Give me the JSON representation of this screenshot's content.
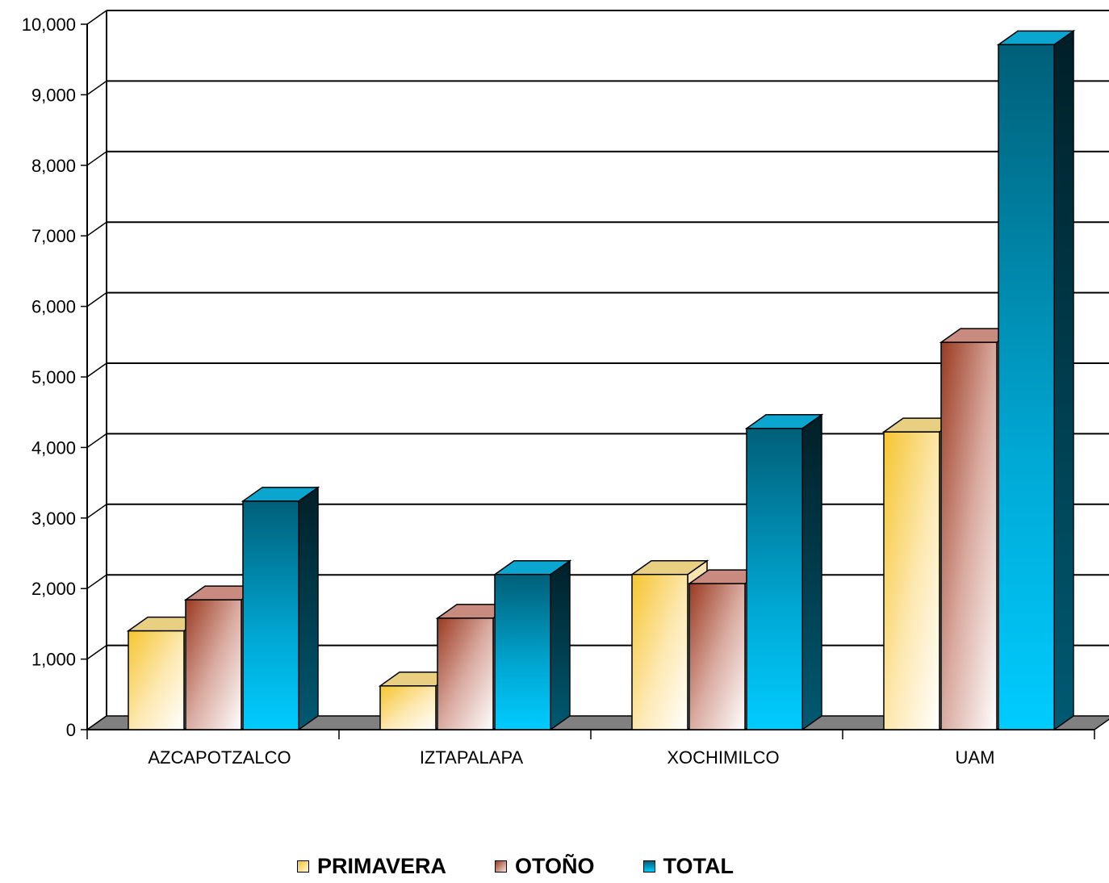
{
  "chart_data": {
    "type": "bar",
    "categories": [
      "AZCAPOTZALCO",
      "IZTAPALAPA",
      "XOCHIMILCO",
      "UAM"
    ],
    "series": [
      {
        "name": "PRIMAVERA",
        "values": [
          1400,
          620,
          2200,
          4220
        ],
        "color": "#f5c842"
      },
      {
        "name": "OTOÑO",
        "values": [
          1840,
          1580,
          2070,
          5490
        ],
        "color": "#a8462f"
      },
      {
        "name": "TOTAL",
        "values": [
          3240,
          2200,
          4270,
          9710
        ],
        "color": "#00b4e0"
      }
    ],
    "ylim": [
      0,
      10000
    ],
    "yticks": [
      0,
      1000,
      2000,
      3000,
      4000,
      5000,
      6000,
      7000,
      8000,
      9000,
      10000
    ],
    "ytick_labels": [
      "0",
      "1,000",
      "2,000",
      "3,000",
      "4,000",
      "5,000",
      "6,000",
      "7,000",
      "8,000",
      "9,000",
      "10,000"
    ],
    "grid": true,
    "legend_position": "bottom"
  },
  "legend": {
    "items": [
      "PRIMAVERA",
      "OTOÑO",
      "TOTAL"
    ]
  }
}
